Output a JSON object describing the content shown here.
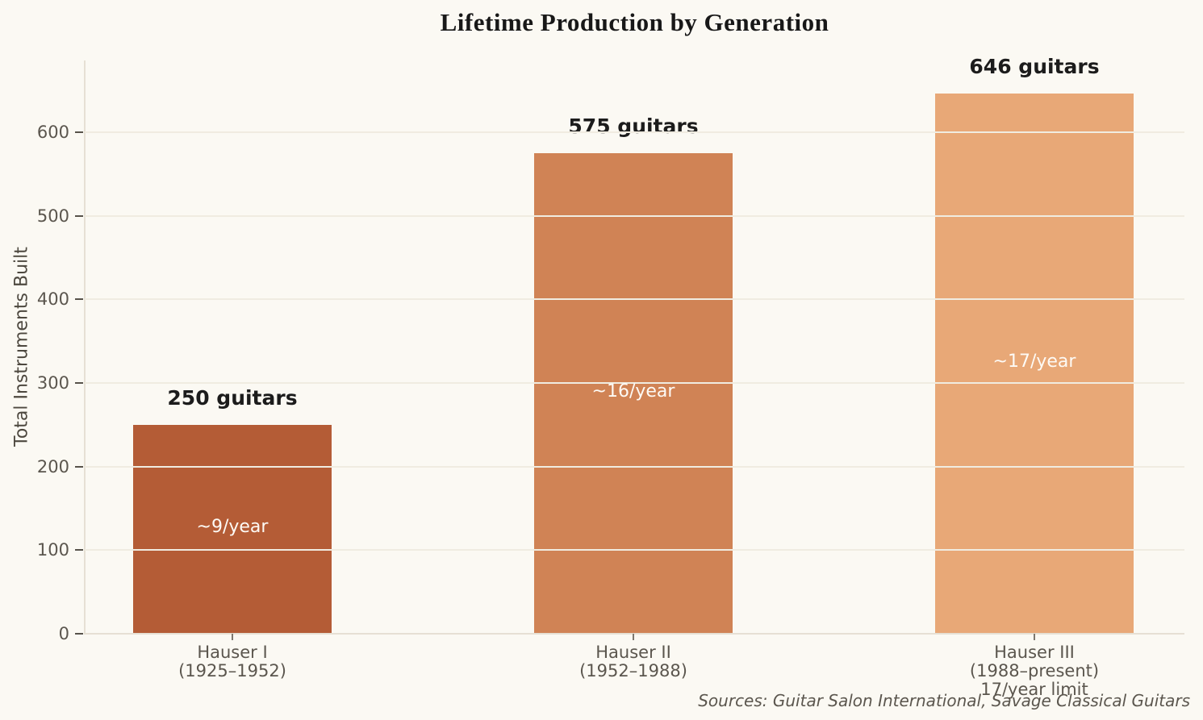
{
  "page": {
    "background_color": "#fbf9f3"
  },
  "chart_data": {
    "type": "bar",
    "title": "Lifetime Production by Generation",
    "ylabel": "Total Instruments Built",
    "xlabel": "",
    "ylim": [
      0,
      686
    ],
    "yticks": [
      0,
      100,
      200,
      300,
      400,
      500,
      600
    ],
    "grid": "horizontal",
    "legend": "none",
    "categories": [
      [
        "Hauser I",
        "(1925–1952)"
      ],
      [
        "Hauser II",
        "(1952–1988)"
      ],
      [
        "Hauser III",
        "(1988–present)",
        "17/year limit"
      ]
    ],
    "values": [
      250,
      575,
      646
    ],
    "value_labels": [
      "250 guitars",
      "575 guitars",
      "646 guitars"
    ],
    "bar_annotations": [
      "~9/year",
      "~16/year",
      "~17/year"
    ],
    "bar_colors": [
      "#b45c36",
      "#d08355",
      "#e8a877"
    ],
    "annotation_text_color": "#fdfaf5",
    "value_label_color": "#1c1c1c",
    "tick_label_color": "#5b564e",
    "gridline_color": "#f0ece1",
    "source": "Sources: Guitar Salon International, Savage Classical Guitars"
  }
}
